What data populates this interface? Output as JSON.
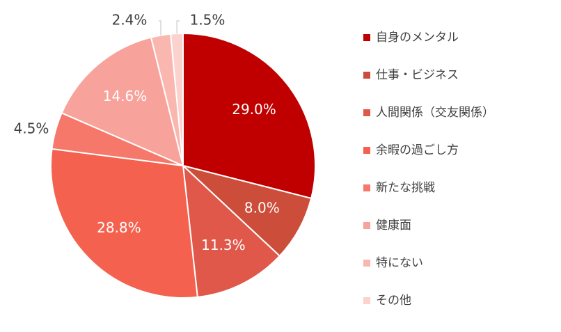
{
  "chart_data": {
    "type": "pie",
    "title": "",
    "legend_position": "right",
    "start_angle": "12 o'clock, clockwise",
    "categories": [
      "自身のメンタル",
      "仕事・ビジネス",
      "人間関係（交友関係）",
      "余暇の過ごし方",
      "新たな挑戦",
      "健康面",
      "特にない",
      "その他"
    ],
    "values": [
      29.0,
      8.0,
      11.3,
      28.8,
      4.5,
      14.6,
      2.4,
      1.5
    ],
    "labels": [
      "29.0%",
      "8.0%",
      "11.3%",
      "28.8%",
      "4.5%",
      "14.6%",
      "2.4%",
      "1.5%"
    ],
    "colors": [
      "#c00000",
      "#cc4e3a",
      "#e0584a",
      "#f4624f",
      "#f5786a",
      "#f7a29a",
      "#f9b7b0",
      "#fbd2cd"
    ]
  }
}
